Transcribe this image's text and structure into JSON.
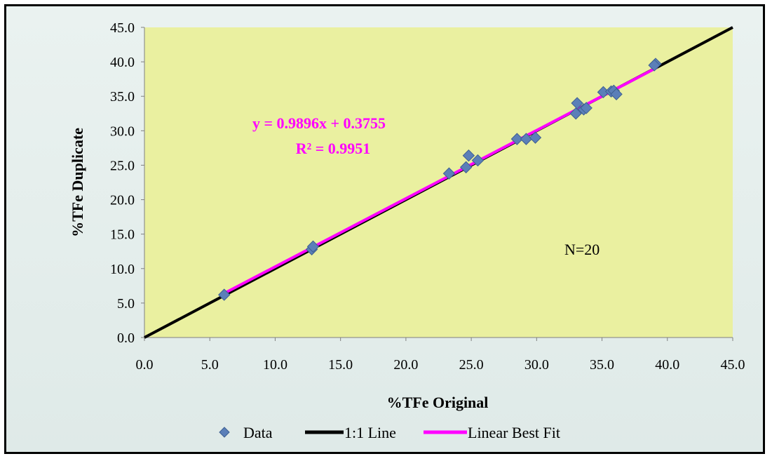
{
  "chart_data": {
    "type": "scatter",
    "title": "",
    "xlabel": "%TFe Original",
    "ylabel": "%TFe Duplicate",
    "xlim": [
      0,
      45
    ],
    "ylim": [
      0,
      45
    ],
    "x_ticks": [
      "0.0",
      "5.0",
      "10.0",
      "15.0",
      "20.0",
      "25.0",
      "30.0",
      "35.0",
      "40.0",
      "45.0"
    ],
    "y_ticks": [
      "0.0",
      "5.0",
      "10.0",
      "15.0",
      "20.0",
      "25.0",
      "30.0",
      "35.0",
      "40.0",
      "45.0"
    ],
    "grid": false,
    "legend_position": "bottom",
    "series": [
      {
        "name": "Data",
        "kind": "scatter",
        "marker": "diamond",
        "color": "#5b7fb8",
        "points": [
          [
            6.1,
            6.2
          ],
          [
            12.8,
            12.8
          ],
          [
            12.9,
            13.2
          ],
          [
            23.3,
            23.8
          ],
          [
            24.6,
            24.7
          ],
          [
            24.8,
            26.4
          ],
          [
            25.5,
            25.7
          ],
          [
            28.5,
            28.8
          ],
          [
            29.2,
            28.8
          ],
          [
            29.9,
            29.0
          ],
          [
            33.0,
            32.5
          ],
          [
            33.1,
            34.0
          ],
          [
            33.6,
            33.1
          ],
          [
            33.8,
            33.3
          ],
          [
            35.1,
            35.6
          ],
          [
            35.7,
            35.7
          ],
          [
            35.9,
            35.8
          ],
          [
            36.1,
            35.3
          ],
          [
            39.1,
            39.7
          ],
          [
            39.0,
            39.5
          ]
        ]
      },
      {
        "name": "1:1 Line",
        "kind": "line",
        "color": "#000000",
        "points": [
          [
            0,
            0
          ],
          [
            45,
            45
          ]
        ]
      },
      {
        "name": "Linear Best Fit",
        "kind": "line",
        "color": "#ff00ff",
        "points": [
          [
            6.0,
            6.313
          ],
          [
            39.2,
            39.168
          ]
        ]
      }
    ],
    "annotations": {
      "equation": "y = 0.9896x + 0.3755",
      "r_squared": "R² = 0.9951",
      "n_label": "N=20",
      "annotation_color": "#ff00ff"
    },
    "plot_background": "#eaf0a0"
  }
}
